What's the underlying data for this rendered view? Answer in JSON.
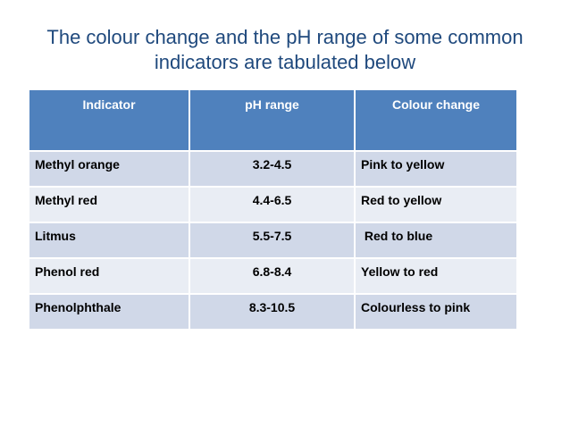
{
  "slide": {
    "title_line1": "The colour change and the pH range of some common",
    "title_line2": "indicators are tabulated below"
  },
  "table": {
    "columns": [
      "Indicator",
      "pH range",
      "Colour change"
    ],
    "rows": [
      {
        "indicator": "Methyl orange",
        "ph_range": "3.2-4.5",
        "colour_change": "Pink to yellow"
      },
      {
        "indicator": "Methyl red",
        "ph_range": "4.4-6.5",
        "colour_change": "Red to yellow"
      },
      {
        "indicator": "Litmus",
        "ph_range": "5.5-7.5",
        "colour_change": " Red to blue"
      },
      {
        "indicator": "Phenol red",
        "ph_range": "6.8-8.4",
        "colour_change": "Yellow to red"
      },
      {
        "indicator": "Phenolphthale",
        "ph_range": "8.3-10.5",
        "colour_change": "Colourless to pink"
      }
    ]
  },
  "colors": {
    "title-color": "#1F497D",
    "header-bg": "#4F81BD",
    "header-text": "#FFFFFF",
    "row-odd-bg": "#D0D8E8",
    "row-even-bg": "#E9EDF4",
    "cell-text": "#000000"
  }
}
